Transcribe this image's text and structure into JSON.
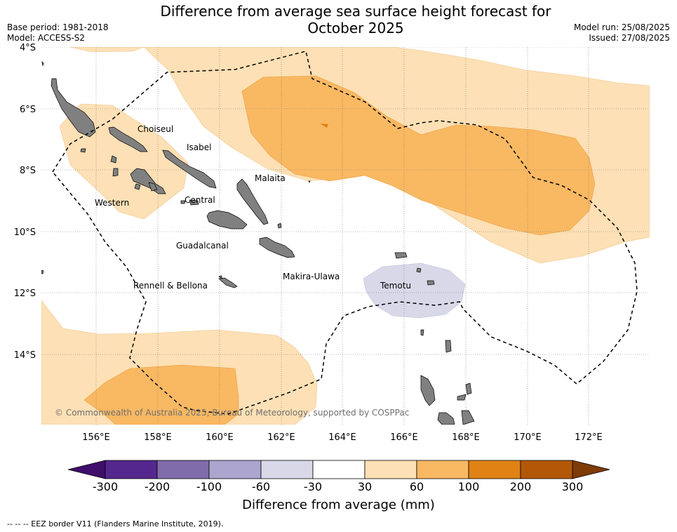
{
  "header": {
    "title_line1": "Difference from average sea surface height forecast for",
    "title_line2": "October 2025",
    "base_period": "Base period: 1981-2018",
    "model": "Model: ACCESS-S2",
    "model_run": "Model run: 25/08/2025",
    "issued": "Issued: 27/08/2025"
  },
  "map": {
    "lat_labels": [
      "4°S",
      "6°S",
      "8°S",
      "10°S",
      "12°S",
      "14°S"
    ],
    "lon_labels": [
      "156°E",
      "158°E",
      "160°E",
      "162°E",
      "164°E",
      "166°E",
      "168°E",
      "170°E",
      "172°E"
    ],
    "province_labels": [
      "Choiseul",
      "Isabel",
      "Malaita",
      "Western",
      "Central",
      "Guadalcanal",
      "Makira-Ulawa",
      "Rennell & Bellona",
      "Temotu"
    ],
    "copyright": "© Commonwealth of Australia 2025, Bureau of Meteorology, supported by COSPPac"
  },
  "colorbar": {
    "title": "Difference from average (mm)",
    "tick_labels": [
      "-300",
      "-200",
      "-100",
      "-60",
      "-30",
      "30",
      "60",
      "100",
      "200",
      "300"
    ],
    "colors": [
      "#3f0f6b",
      "#54278f",
      "#7f6ca9",
      "#aba5cf",
      "#d8d8e9",
      "#ffffff",
      "#fde0b5",
      "#f9b862",
      "#e08214",
      "#b35806",
      "#7f3b08"
    ]
  },
  "legend_note": "--  --  -- EEZ border V11 (Flanders Marine Institute, 2019)."
}
